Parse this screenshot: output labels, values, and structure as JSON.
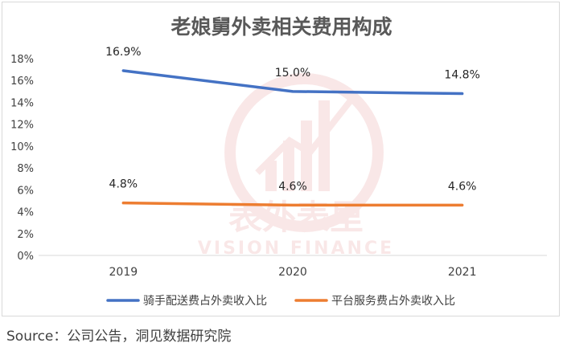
{
  "chart_data": {
    "type": "line",
    "title": "老娘舅外卖相关费用构成",
    "categories": [
      "2019",
      "2020",
      "2021"
    ],
    "ylim": [
      0,
      18
    ],
    "yticks": [
      "0%",
      "2%",
      "4%",
      "6%",
      "8%",
      "10%",
      "12%",
      "14%",
      "16%",
      "18%"
    ],
    "ytick_values": [
      0,
      2,
      4,
      6,
      8,
      10,
      12,
      14,
      16,
      18
    ],
    "grid": false,
    "legend_position": "bottom",
    "series": [
      {
        "name": "骑手配送费占外卖收入比",
        "values": [
          16.9,
          15.0,
          14.8
        ],
        "labels": [
          "16.9%",
          "15.0%",
          "14.8%"
        ],
        "color": "#4472c4"
      },
      {
        "name": "平台服务费占外卖收入比",
        "values": [
          4.8,
          4.6,
          4.6
        ],
        "labels": [
          "4.8%",
          "4.6%",
          "4.6%"
        ],
        "color": "#ed7d31"
      }
    ]
  },
  "watermark": {
    "cn_text": "表外表里",
    "en_text": "VISION FINANCE"
  },
  "source": "Source：公司公告，洞见数据研究院"
}
